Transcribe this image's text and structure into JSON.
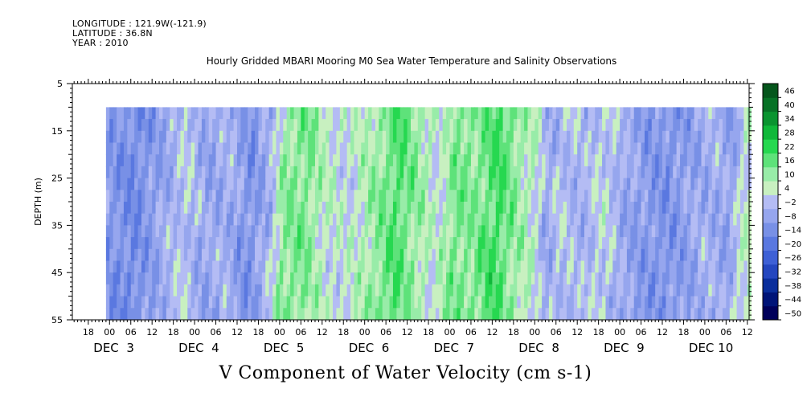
{
  "header": {
    "longitude": "LONGITUDE : 121.9W(-121.9)",
    "latitude": "LATITUDE : 36.8N",
    "year": "YEAR : 2010"
  },
  "chart_data": {
    "type": "heatmap",
    "title": "Hourly Gridded MBARI Mooring M0 Sea Water Temperature and Salinity Observations",
    "xlabel": "",
    "ylabel": "DEPTH (m)",
    "caption": "V Component of Water Velocity (cm s-1)",
    "ylim": [
      5,
      55
    ],
    "y_inverted": true,
    "y_ticks": [
      5,
      15,
      25,
      35,
      45,
      55
    ],
    "x_range_hours": [
      -10.5,
      180.5
    ],
    "data_depth_range": [
      10,
      55
    ],
    "x_hour_ticks": [
      {
        "label": "18",
        "hour": -6
      },
      {
        "label": "00",
        "hour": 0
      },
      {
        "label": "06",
        "hour": 6
      },
      {
        "label": "12",
        "hour": 12
      },
      {
        "label": "18",
        "hour": 18
      },
      {
        "label": "00",
        "hour": 24
      },
      {
        "label": "06",
        "hour": 30
      },
      {
        "label": "12",
        "hour": 36
      },
      {
        "label": "18",
        "hour": 42
      },
      {
        "label": "00",
        "hour": 48
      },
      {
        "label": "06",
        "hour": 54
      },
      {
        "label": "12",
        "hour": 60
      },
      {
        "label": "18",
        "hour": 66
      },
      {
        "label": "00",
        "hour": 72
      },
      {
        "label": "06",
        "hour": 78
      },
      {
        "label": "12",
        "hour": 84
      },
      {
        "label": "18",
        "hour": 90
      },
      {
        "label": "00",
        "hour": 96
      },
      {
        "label": "06",
        "hour": 102
      },
      {
        "label": "12",
        "hour": 108
      },
      {
        "label": "18",
        "hour": 114
      },
      {
        "label": "00",
        "hour": 120
      },
      {
        "label": "06",
        "hour": 126
      },
      {
        "label": "12",
        "hour": 132
      },
      {
        "label": "18",
        "hour": 138
      },
      {
        "label": "00",
        "hour": 144
      },
      {
        "label": "06",
        "hour": 150
      },
      {
        "label": "12",
        "hour": 156
      },
      {
        "label": "18",
        "hour": 162
      },
      {
        "label": "00",
        "hour": 168
      },
      {
        "label": "06",
        "hour": 174
      },
      {
        "label": "12",
        "hour": 180
      }
    ],
    "x_day_labels": [
      {
        "label": "DEC  3",
        "hour": 0
      },
      {
        "label": "DEC  4",
        "hour": 24
      },
      {
        "label": "DEC  5",
        "hour": 48
      },
      {
        "label": "DEC  6",
        "hour": 72
      },
      {
        "label": "DEC  7",
        "hour": 96
      },
      {
        "label": "DEC  8",
        "hour": 120
      },
      {
        "label": "DEC  9",
        "hour": 144
      },
      {
        "label": "DEC 10",
        "hour": 168
      }
    ],
    "colorbar": {
      "levels": [
        -50,
        -44,
        -38,
        -32,
        -26,
        -20,
        -14,
        -8,
        -2,
        4,
        10,
        16,
        22,
        28,
        34,
        40,
        46
      ],
      "colors": [
        "#00005a",
        "#001478",
        "#0a2e9c",
        "#2446bf",
        "#3e60d6",
        "#5a78e0",
        "#7890e6",
        "#96a6ee",
        "#b4bcf4",
        "#c8f0c0",
        "#98eca8",
        "#5ee27a",
        "#26d850",
        "#10b83a",
        "#0a9430",
        "#077226",
        "#05561c"
      ]
    },
    "column_profile": [
      {
        "hour": -1,
        "v": -8
      },
      {
        "hour": 8,
        "v": -12
      },
      {
        "hour": 16,
        "v": -4
      },
      {
        "hour": 22,
        "v": 2
      },
      {
        "hour": 28,
        "v": -5
      },
      {
        "hour": 34,
        "v": -2
      },
      {
        "hour": 40,
        "v": -10
      },
      {
        "hour": 46,
        "v": -2
      },
      {
        "hour": 50,
        "v": 14
      },
      {
        "hour": 56,
        "v": 16
      },
      {
        "hour": 62,
        "v": 6
      },
      {
        "hour": 68,
        "v": 4
      },
      {
        "hour": 75,
        "v": 12
      },
      {
        "hour": 82,
        "v": 20
      },
      {
        "hour": 88,
        "v": 12
      },
      {
        "hour": 93,
        "v": 4
      },
      {
        "hour": 98,
        "v": 16
      },
      {
        "hour": 104,
        "v": 14
      },
      {
        "hour": 110,
        "v": 22
      },
      {
        "hour": 116,
        "v": 12
      },
      {
        "hour": 121,
        "v": 6
      },
      {
        "hour": 124,
        "v": -4
      },
      {
        "hour": 128,
        "v": 2
      },
      {
        "hour": 134,
        "v": -2
      },
      {
        "hour": 140,
        "v": 4
      },
      {
        "hour": 146,
        "v": -4
      },
      {
        "hour": 152,
        "v": -8
      },
      {
        "hour": 158,
        "v": -10
      },
      {
        "hour": 164,
        "v": -6
      },
      {
        "hour": 170,
        "v": -2
      },
      {
        "hour": 176,
        "v": -6
      },
      {
        "hour": 179,
        "v": 6
      }
    ]
  }
}
